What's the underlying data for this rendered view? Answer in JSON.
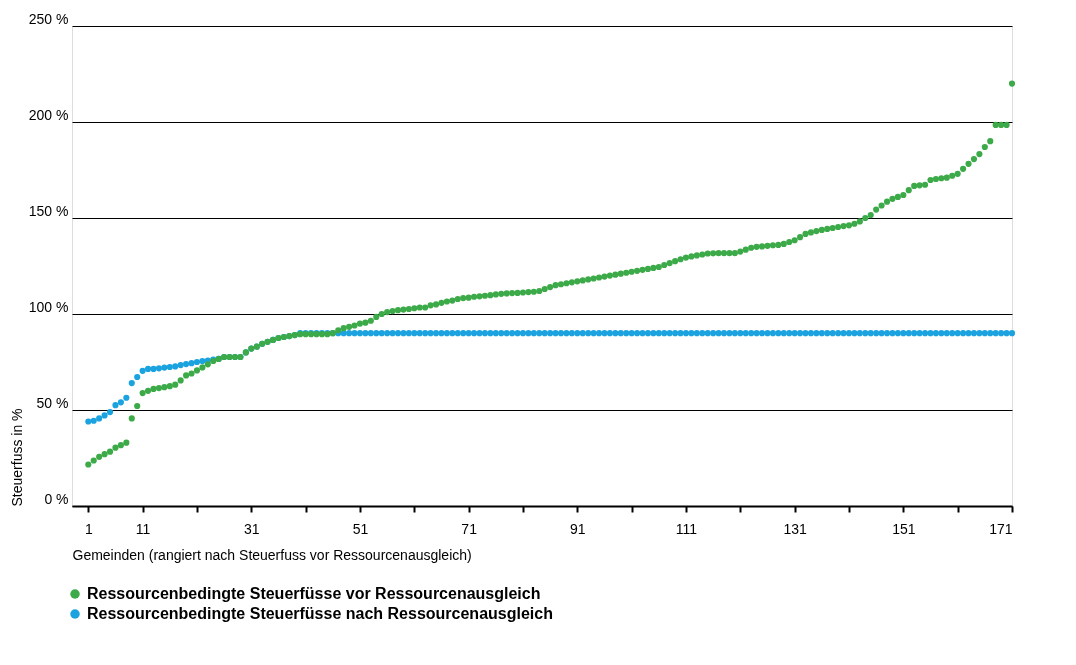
{
  "chart_data": {
    "type": "scatter",
    "xlabel": "Gemeinden (rangiert nach Steuerfuss vor Ressourcenausgleich)",
    "ylabel": "Steuerfuss in %",
    "x": [
      1,
      2,
      3,
      4,
      5,
      6,
      7,
      8,
      9,
      10,
      11,
      12,
      13,
      14,
      15,
      16,
      17,
      18,
      19,
      20,
      21,
      22,
      23,
      24,
      25,
      26,
      27,
      28,
      29,
      30,
      31,
      32,
      33,
      34,
      35,
      36,
      37,
      38,
      39,
      40,
      41,
      42,
      43,
      44,
      45,
      46,
      47,
      48,
      49,
      50,
      51,
      52,
      53,
      54,
      55,
      56,
      57,
      58,
      59,
      60,
      61,
      62,
      63,
      64,
      65,
      66,
      67,
      68,
      69,
      70,
      71,
      72,
      73,
      74,
      75,
      76,
      77,
      78,
      79,
      80,
      81,
      82,
      83,
      84,
      85,
      86,
      87,
      88,
      89,
      90,
      91,
      92,
      93,
      94,
      95,
      96,
      97,
      98,
      99,
      100,
      101,
      102,
      103,
      104,
      105,
      106,
      107,
      108,
      109,
      110,
      111,
      112,
      113,
      114,
      115,
      116,
      117,
      118,
      119,
      120,
      121,
      122,
      123,
      124,
      125,
      126,
      127,
      128,
      129,
      130,
      131,
      132,
      133,
      134,
      135,
      136,
      137,
      138,
      139,
      140,
      141,
      142,
      143,
      144,
      145,
      146,
      147,
      148,
      149,
      150,
      151,
      152,
      153,
      154,
      155,
      156,
      157,
      158,
      159,
      160,
      161,
      162,
      163,
      164,
      165,
      166,
      167,
      168,
      169,
      170,
      171
    ],
    "series": [
      {
        "name": "Ressourcenbedingte Steuerfüsse nach Ressourcenausgleich",
        "color": "#1ba3e0",
        "values": [
          44,
          44.4,
          45.6,
          47.2,
          48.9,
          52.5,
          54,
          56.4,
          64,
          67.2,
          70.4,
          71.4,
          71.4,
          71.7,
          72.1,
          72.4,
          72.7,
          73.4,
          73.9,
          74.4,
          75,
          75.5,
          75.8,
          76.3,
          76.6,
          77.6,
          77.6,
          77.6,
          77.6,
          80,
          82,
          83,
          84.5,
          85.5,
          86.5,
          87.5,
          88,
          88.5,
          89,
          90,
          90,
          90,
          90,
          90,
          90,
          90,
          90,
          90,
          90,
          90,
          90,
          90,
          90,
          90,
          90,
          90,
          90,
          90,
          90,
          90,
          90,
          90,
          90,
          90,
          90,
          90,
          90,
          90,
          90,
          90,
          90,
          90,
          90,
          90,
          90,
          90,
          90,
          90,
          90,
          90,
          90,
          90,
          90,
          90,
          90,
          90,
          90,
          90,
          90,
          90,
          90,
          90,
          90,
          90,
          90,
          90,
          90,
          90,
          90,
          90,
          90,
          90,
          90,
          90,
          90,
          90,
          90,
          90,
          90,
          90,
          90,
          90,
          90,
          90,
          90,
          90,
          90,
          90,
          90,
          90,
          90,
          90,
          90,
          90,
          90,
          90,
          90,
          90,
          90,
          90,
          90,
          90,
          90,
          90,
          90,
          90,
          90,
          90,
          90,
          90,
          90,
          90,
          90,
          90,
          90,
          90,
          90,
          90,
          90,
          90,
          90,
          90,
          90,
          90,
          90,
          90,
          90,
          90,
          90,
          90,
          90,
          90,
          90,
          90,
          90,
          90,
          90,
          90,
          90,
          90,
          90
        ]
      },
      {
        "name": "Ressourcenbedingte Steuerfüsse vor Ressourcenausgleich",
        "color": "#3caa48",
        "values": [
          21.6,
          23.7,
          25.6,
          27,
          28.3,
          30.4,
          31.7,
          33,
          45.6,
          52.1,
          58.8,
          60,
          61,
          61.4,
          61.9,
          62.4,
          63.2,
          65.4,
          68,
          69,
          70.6,
          72.2,
          73.8,
          75.5,
          76.6,
          77.6,
          77.6,
          77.6,
          77.6,
          80,
          82,
          83,
          84.5,
          85.5,
          86.5,
          87.5,
          88,
          88.5,
          89,
          89.5,
          89.5,
          89.5,
          89.5,
          89.5,
          89.5,
          90,
          91.5,
          92.6,
          93.3,
          94,
          95,
          95.5,
          96.5,
          98.5,
          100,
          101,
          101.5,
          102,
          102.3,
          102.6,
          103,
          103.4,
          103.4,
          104.5,
          105,
          105.8,
          106.5,
          107,
          107.8,
          108.3,
          108.5,
          109,
          109.2,
          109.5,
          109.8,
          110.2,
          110.5,
          110.7,
          110.9,
          111,
          111.2,
          111.4,
          111.6,
          112,
          113,
          114,
          115,
          115.5,
          116,
          116.5,
          117,
          117.5,
          118,
          118.5,
          119,
          119.5,
          120,
          120.5,
          121,
          121.5,
          122,
          122.5,
          123,
          123.5,
          124,
          124.5,
          125.5,
          126.5,
          127.5,
          128.5,
          129.4,
          130,
          130.5,
          131,
          131.5,
          131.6,
          131.7,
          131.7,
          131.7,
          131.7,
          132.5,
          133.5,
          134.5,
          135,
          135.2,
          135.5,
          135.8,
          136,
          136.5,
          137.5,
          138.4,
          140,
          141.7,
          142.5,
          143.2,
          143.8,
          144.3,
          144.8,
          145.3,
          145.8,
          146.2,
          147,
          148.2,
          150,
          151.5,
          154.4,
          156.5,
          158.5,
          160,
          161,
          162,
          164.5,
          166.7,
          167,
          167.3,
          169.8,
          170.3,
          170.7,
          171,
          172,
          173,
          175.6,
          178.2,
          180.7,
          183.3,
          187,
          190,
          198.5,
          198.5,
          198.5,
          220
        ]
      }
    ],
    "xlim": [
      -2,
      171
    ],
    "xticks": [
      1,
      11,
      {
        "value": 21,
        "label": null
      },
      31,
      {
        "value": 41,
        "label": null
      },
      51,
      {
        "value": 61,
        "label": null
      },
      71,
      {
        "value": 81,
        "label": null
      },
      91,
      {
        "value": 101,
        "label": null
      },
      111,
      {
        "value": 121,
        "label": null
      },
      131,
      {
        "value": 141,
        "label": null
      },
      151,
      {
        "value": 161,
        "label": null
      },
      171
    ],
    "ylim": [
      0,
      250
    ],
    "yticks": [
      {
        "value": 0,
        "label": "0 %"
      },
      {
        "value": 50,
        "label": "50 %"
      },
      {
        "value": 100,
        "label": "100 %"
      },
      {
        "value": 150,
        "label": "150 %"
      },
      {
        "value": 200,
        "label": "200 %"
      },
      {
        "value": 250,
        "label": "250 %"
      }
    ],
    "grid": "y",
    "legend": "bottom left",
    "marker": "circle"
  }
}
